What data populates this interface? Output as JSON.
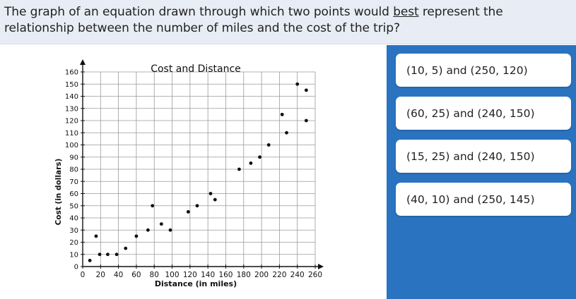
{
  "question": {
    "before": "The graph of an equation drawn through which two points would ",
    "emphasis": "best",
    "after": " represent the relationship between the number of miles and the cost of the trip?"
  },
  "choices": [
    {
      "label": "(10, 5) and (250, 120)"
    },
    {
      "label": "(60, 25) and (240, 150)"
    },
    {
      "label": "(15, 25) and (240, 150)"
    },
    {
      "label": "(40, 10) and (250, 145)"
    }
  ],
  "colors": {
    "question_bg": "#e8edf5",
    "answer_panel": "#2a73c0",
    "choice_bg": "#ffffff"
  },
  "chart_data": {
    "type": "scatter",
    "title": "Cost and Distance",
    "xlabel": "Distance (in miles)",
    "ylabel": "Cost (in dollars)",
    "xlim": [
      0,
      260
    ],
    "ylim": [
      0,
      160
    ],
    "x_ticks": [
      0,
      20,
      40,
      60,
      80,
      100,
      120,
      140,
      160,
      180,
      200,
      220,
      240,
      260
    ],
    "y_ticks": [
      0,
      10,
      20,
      30,
      40,
      50,
      60,
      70,
      80,
      90,
      100,
      110,
      120,
      130,
      140,
      150,
      160
    ],
    "grid": true,
    "points": [
      {
        "x": 8,
        "y": 5
      },
      {
        "x": 15,
        "y": 25
      },
      {
        "x": 19,
        "y": 10
      },
      {
        "x": 28,
        "y": 10
      },
      {
        "x": 38,
        "y": 10
      },
      {
        "x": 48,
        "y": 15
      },
      {
        "x": 60,
        "y": 25
      },
      {
        "x": 73,
        "y": 30
      },
      {
        "x": 78,
        "y": 50
      },
      {
        "x": 88,
        "y": 35
      },
      {
        "x": 98,
        "y": 30
      },
      {
        "x": 118,
        "y": 45
      },
      {
        "x": 128,
        "y": 50
      },
      {
        "x": 143,
        "y": 60
      },
      {
        "x": 148,
        "y": 55
      },
      {
        "x": 175,
        "y": 80
      },
      {
        "x": 188,
        "y": 85
      },
      {
        "x": 198,
        "y": 90
      },
      {
        "x": 208,
        "y": 100
      },
      {
        "x": 223,
        "y": 125
      },
      {
        "x": 228,
        "y": 110
      },
      {
        "x": 240,
        "y": 150
      },
      {
        "x": 250,
        "y": 145
      },
      {
        "x": 250,
        "y": 120
      }
    ]
  }
}
